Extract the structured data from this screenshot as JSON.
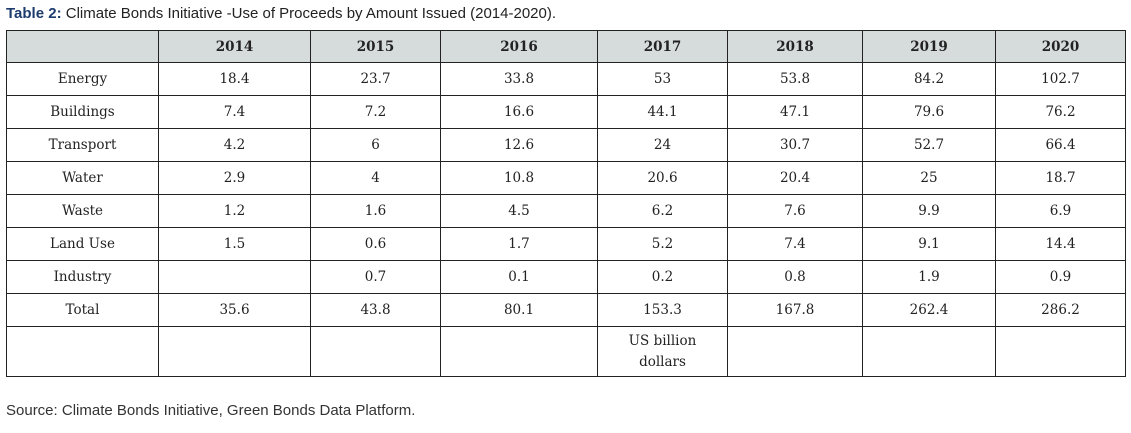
{
  "title": {
    "label": "Table 2:",
    "text": "Climate Bonds Initiative -Use of Proceeds by Amount Issued (2014-2020)."
  },
  "table": {
    "columns": [
      "",
      "2014",
      "2015",
      "2016",
      "2017",
      "2018",
      "2019",
      "2020"
    ],
    "rows": [
      [
        "Energy",
        "18.4",
        "23.7",
        "33.8",
        "53",
        "53.8",
        "84.2",
        "102.7"
      ],
      [
        "Buildings",
        "7.4",
        "7.2",
        "16.6",
        "44.1",
        "47.1",
        "79.6",
        "76.2"
      ],
      [
        "Transport",
        "4.2",
        "6",
        "12.6",
        "24",
        "30.7",
        "52.7",
        "66.4"
      ],
      [
        "Water",
        "2.9",
        "4",
        "10.8",
        "20.6",
        "20.4",
        "25",
        "18.7"
      ],
      [
        "Waste",
        "1.2",
        "1.6",
        "4.5",
        "6.2",
        "7.6",
        "9.9",
        "6.9"
      ],
      [
        "Land Use",
        "1.5",
        "0.6",
        "1.7",
        "5.2",
        "7.4",
        "9.1",
        "14.4"
      ],
      [
        "Industry",
        "",
        "0.7",
        "0.1",
        "0.2",
        "0.8",
        "1.9",
        "0.9"
      ],
      [
        "Total",
        "35.6",
        "43.8",
        "80.1",
        "153.3",
        "167.8",
        "262.4",
        "286.2"
      ],
      [
        "",
        "",
        "",
        "",
        "US billion dollars",
        "",
        "",
        ""
      ]
    ]
  },
  "source": "Source: Climate Bonds Initiative, Green Bonds Data Platform."
}
